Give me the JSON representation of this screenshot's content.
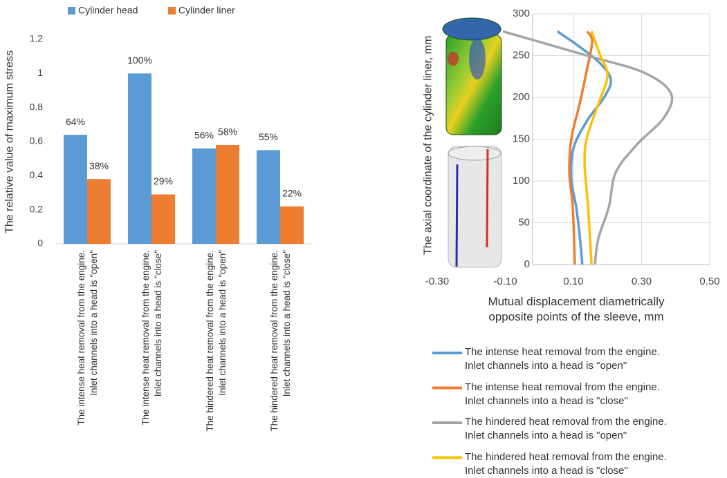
{
  "chart_data": [
    {
      "type": "bar",
      "y_label": "The relative value of maximum stress",
      "categories": [
        "The intense heat removal from the engine.\nInlet channels into a head is \"open\"",
        "The intense heat removal from the engine.\nInlet channels into a head is \"close\"",
        "The hindered heat removal from the engine.\nInlet channels into a head is \"open\"",
        "The hindered heat removal from the engine.\nInlet channels into a head is \"close\""
      ],
      "series": [
        {
          "name": "Cylinder head",
          "color": "#5b9bd5",
          "values": [
            0.64,
            1.0,
            0.56,
            0.55
          ],
          "value_labels": [
            "64%",
            "100%",
            "56%",
            "55%"
          ]
        },
        {
          "name": "Cylinder liner",
          "color": "#ed7d31",
          "values": [
            0.38,
            0.29,
            0.58,
            0.22
          ],
          "value_labels": [
            "38%",
            "29%",
            "58%",
            "22%"
          ]
        }
      ],
      "ylim": [
        0,
        1.2
      ],
      "yticks": [
        0,
        0.2,
        0.4,
        0.6,
        0.8,
        1,
        1.2
      ],
      "grid": false,
      "legend": "top"
    },
    {
      "type": "line",
      "x_label": "Mutual displacement diametrically\nopposite points of the sleeve, mm",
      "y_label": "The axial coordinate of the cylinder liner, mm",
      "series": [
        {
          "name": "The intense heat removal from the engine.\nInlet channels into a head is \"open\"",
          "color": "#5b9bd5",
          "x": [
            0.053,
            0.12,
            0.18,
            0.21,
            0.19,
            0.14,
            0.1,
            0.094,
            0.108,
            0.118,
            0.126
          ],
          "values": [
            279,
            260,
            240,
            221,
            200,
            172,
            139,
            102,
            69,
            36,
            0
          ]
        },
        {
          "name": "The intense heat removal from the engine.\nInlet channels into a head is \"close\"",
          "color": "#ed7d31",
          "x": [
            0.14,
            0.155,
            0.14,
            0.118,
            0.094,
            0.088,
            0.098,
            0.104
          ],
          "values": [
            279,
            267,
            234,
            192,
            151,
            110,
            69,
            0
          ]
        },
        {
          "name": "The hindered heat removal from the engine.\nInlet channels into a head is \"open\"",
          "color": "#a5a5a5",
          "x": [
            -0.107,
            0.14,
            0.305,
            0.386,
            0.366,
            0.285,
            0.224,
            0.204,
            0.173,
            0.163
          ],
          "values": [
            279,
            250,
            230,
            205,
            176,
            143,
            110,
            69,
            31,
            0
          ]
        },
        {
          "name": "The hindered heat removal from the engine.\nInlet channels into a head is \"close\"",
          "color": "#ffc000",
          "x": [
            0.153,
            0.179,
            0.2,
            0.173,
            0.139,
            0.133,
            0.143,
            0.153
          ],
          "values": [
            279,
            250,
            226,
            192,
            151,
            118,
            69,
            0
          ]
        }
      ],
      "xlim": [
        -0.3,
        0.5
      ],
      "xticks": [
        {
          "value": -0.3,
          "label": "-0.30"
        },
        {
          "value": -0.1,
          "label": "-0.10"
        },
        {
          "value": 0.1,
          "label": "0.10"
        },
        {
          "value": 0.3,
          "label": "0.30"
        },
        {
          "value": 0.5,
          "label": "0.50"
        }
      ],
      "ylim": [
        0,
        300
      ],
      "yticks": [
        0,
        50,
        100,
        150,
        200,
        250,
        300
      ],
      "grid": true,
      "legend": "bottom"
    }
  ]
}
